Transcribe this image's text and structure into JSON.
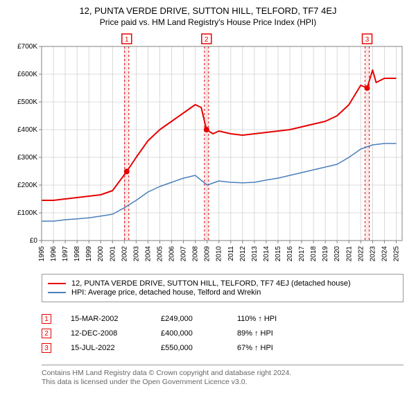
{
  "title": "12, PUNTA VERDE DRIVE, SUTTON HILL, TELFORD, TF7 4EJ",
  "subtitle": "Price paid vs. HM Land Registry's House Price Index (HPI)",
  "chart": {
    "type": "line",
    "background_color": "#ffffff",
    "grid_color": "#d0d0d0",
    "label_fontsize": 10,
    "axis_color": "#808080",
    "xlim": [
      1995,
      2025.5
    ],
    "ylim": [
      0,
      700000
    ],
    "ytick_step": 100000,
    "yticks": [
      "£0",
      "£100K",
      "£200K",
      "£300K",
      "£400K",
      "£500K",
      "£600K",
      "£700K"
    ],
    "xticks": [
      1995,
      1996,
      1997,
      1998,
      1999,
      2000,
      2001,
      2002,
      2003,
      2004,
      2005,
      2006,
      2007,
      2008,
      2009,
      2010,
      2011,
      2012,
      2013,
      2014,
      2015,
      2016,
      2017,
      2018,
      2019,
      2020,
      2021,
      2022,
      2023,
      2024,
      2025
    ],
    "series": [
      {
        "name": "property",
        "label": "12, PUNTA VERDE DRIVE, SUTTON HILL, TELFORD, TF7 4EJ (detached house)",
        "color": "#e60000",
        "line_width": 2,
        "data": [
          [
            1995,
            145000
          ],
          [
            1996,
            145000
          ],
          [
            1997,
            150000
          ],
          [
            1998,
            155000
          ],
          [
            1999,
            160000
          ],
          [
            2000,
            165000
          ],
          [
            2001,
            180000
          ],
          [
            2002.2,
            249000
          ],
          [
            2003,
            300000
          ],
          [
            2004,
            360000
          ],
          [
            2005,
            400000
          ],
          [
            2006,
            430000
          ],
          [
            2007,
            460000
          ],
          [
            2008,
            490000
          ],
          [
            2008.5,
            480000
          ],
          [
            2008.95,
            400000
          ],
          [
            2009.5,
            385000
          ],
          [
            2010,
            395000
          ],
          [
            2011,
            385000
          ],
          [
            2012,
            380000
          ],
          [
            2013,
            385000
          ],
          [
            2014,
            390000
          ],
          [
            2015,
            395000
          ],
          [
            2016,
            400000
          ],
          [
            2017,
            410000
          ],
          [
            2018,
            420000
          ],
          [
            2019,
            430000
          ],
          [
            2020,
            450000
          ],
          [
            2021,
            490000
          ],
          [
            2022,
            560000
          ],
          [
            2022.54,
            550000
          ],
          [
            2023,
            615000
          ],
          [
            2023.3,
            570000
          ],
          [
            2024,
            585000
          ],
          [
            2025,
            585000
          ]
        ]
      },
      {
        "name": "hpi",
        "label": "HPI: Average price, detached house, Telford and Wrekin",
        "color": "#4a7ebb",
        "line_width": 1.5,
        "data": [
          [
            1995,
            70000
          ],
          [
            1996,
            70000
          ],
          [
            1997,
            75000
          ],
          [
            1998,
            78000
          ],
          [
            1999,
            82000
          ],
          [
            2000,
            88000
          ],
          [
            2001,
            95000
          ],
          [
            2002,
            118000
          ],
          [
            2003,
            145000
          ],
          [
            2004,
            175000
          ],
          [
            2005,
            195000
          ],
          [
            2006,
            210000
          ],
          [
            2007,
            225000
          ],
          [
            2008,
            235000
          ],
          [
            2009,
            200000
          ],
          [
            2010,
            215000
          ],
          [
            2011,
            210000
          ],
          [
            2012,
            208000
          ],
          [
            2013,
            210000
          ],
          [
            2014,
            218000
          ],
          [
            2015,
            225000
          ],
          [
            2016,
            235000
          ],
          [
            2017,
            245000
          ],
          [
            2018,
            255000
          ],
          [
            2019,
            265000
          ],
          [
            2020,
            275000
          ],
          [
            2021,
            300000
          ],
          [
            2022,
            330000
          ],
          [
            2023,
            345000
          ],
          [
            2024,
            350000
          ],
          [
            2025,
            350000
          ]
        ]
      }
    ],
    "marker_bands": [
      {
        "n": 1,
        "x": 2002.2,
        "color": "#e60000",
        "point_y": 249000
      },
      {
        "n": 2,
        "x": 2008.95,
        "color": "#e60000",
        "point_y": 400000
      },
      {
        "n": 3,
        "x": 2022.54,
        "color": "#e60000",
        "point_y": 550000
      }
    ],
    "marker_dash": "3,3",
    "marker_band_fill": "#ffe8e8"
  },
  "legend_items": [
    {
      "label": "12, PUNTA VERDE DRIVE, SUTTON HILL, TELFORD, TF7 4EJ (detached house)",
      "color": "#e60000"
    },
    {
      "label": "HPI: Average price, detached house, Telford and Wrekin",
      "color": "#4a7ebb"
    }
  ],
  "events": [
    {
      "n": "1",
      "date": "15-MAR-2002",
      "price": "£249,000",
      "hpi_pct": "110%",
      "hpi_dir": "↑",
      "hpi_suffix": "HPI",
      "color": "#e60000"
    },
    {
      "n": "2",
      "date": "12-DEC-2008",
      "price": "£400,000",
      "hpi_pct": "89%",
      "hpi_dir": "↑",
      "hpi_suffix": "HPI",
      "color": "#e60000"
    },
    {
      "n": "3",
      "date": "15-JUL-2022",
      "price": "£550,000",
      "hpi_pct": "67%",
      "hpi_dir": "↑",
      "hpi_suffix": "HPI",
      "color": "#e60000"
    }
  ],
  "footer": {
    "line1": "Contains HM Land Registry data © Crown copyright and database right 2024.",
    "line2": "This data is licensed under the Open Government Licence v3.0."
  }
}
